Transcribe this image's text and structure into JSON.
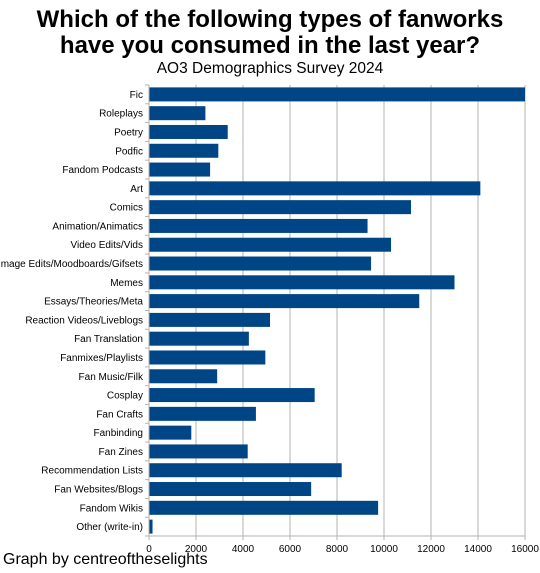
{
  "title_line1": "Which of the following types of fanworks",
  "title_line2": "have you consumed in the last year?",
  "subtitle": "AO3 Demographics Survey 2024",
  "credit": "Graph by centreoftheselights",
  "colors": {
    "bar": "#004586",
    "grid": "#b3b3b3",
    "axis": "#b3b3b3"
  },
  "chart_data": {
    "type": "bar",
    "orientation": "horizontal",
    "categories": [
      "Fic",
      "Roleplays",
      "Poetry",
      "Podfic",
      "Fandom Podcasts",
      "Art",
      "Comics",
      "Animation/Animatics",
      "Video Edits/Vids",
      "Image Edits/Moodboards/Gifsets",
      "Memes",
      "Essays/Theories/Meta",
      "Reaction Videos/Liveblogs",
      "Fan Translation",
      "Fanmixes/Playlists",
      "Fan Music/Filk",
      "Cosplay",
      "Fan Crafts",
      "Fanbinding",
      "Fan Zines",
      "Recommendation Lists",
      "Fan Websites/Blogs",
      "Fandom Wikis",
      "Other (write-in)"
    ],
    "values": [
      16000,
      2400,
      3350,
      2950,
      2600,
      14100,
      11150,
      9300,
      10300,
      9450,
      13000,
      11500,
      5150,
      4250,
      4950,
      2900,
      7050,
      4550,
      1800,
      4200,
      8200,
      6900,
      9750,
      150
    ],
    "xticks": [
      "0",
      "2000",
      "4000",
      "6000",
      "8000",
      "10000",
      "12000",
      "14000",
      "16000"
    ],
    "xlim": [
      0,
      16000
    ],
    "grid": true,
    "legend": "none"
  }
}
